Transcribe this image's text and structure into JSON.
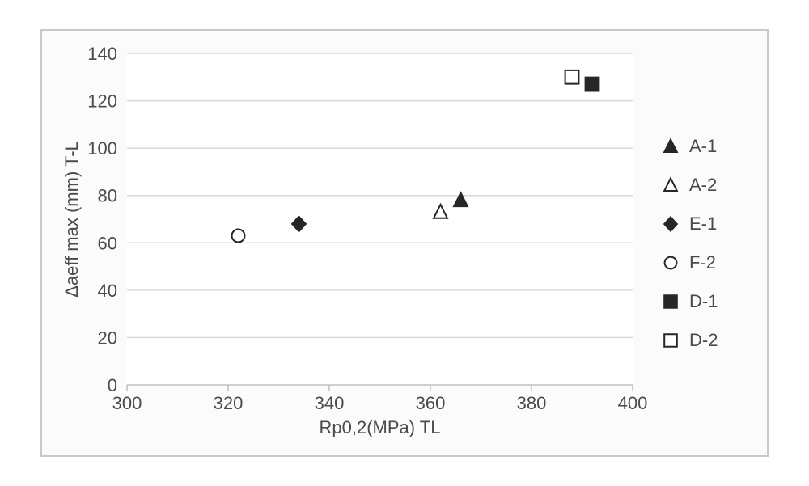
{
  "chart": {
    "type": "scatter",
    "background_color": "#fbfbfb",
    "plot_background": "#ffffff",
    "panel_border_color": "#c9c9c9",
    "grid_color": "#d9d9d9",
    "axis_line_color": "#bfbfbf",
    "tick_label_color": "#4a4a4a",
    "axis_title_color": "#4a4a4a",
    "tick_fontsize": 22,
    "axis_title_fontsize": 22,
    "xlabel": "Rp0,2(MPa) TL",
    "ylabel": "Δaeff max (mm) T-L",
    "xlim": [
      300,
      400
    ],
    "ylim": [
      0,
      140
    ],
    "xticks": [
      300,
      320,
      340,
      360,
      380,
      400
    ],
    "yticks": [
      0,
      20,
      40,
      60,
      80,
      100,
      120,
      140
    ],
    "marker_stroke": "#262626",
    "marker_fill_solid": "#262626",
    "marker_fill_open": "#ffffff",
    "marker_size": 12,
    "series": [
      {
        "name": "A-1",
        "marker": "triangle",
        "filled": true,
        "x": 366,
        "y": 78
      },
      {
        "name": "A-2",
        "marker": "triangle",
        "filled": false,
        "x": 362,
        "y": 73
      },
      {
        "name": "E-1",
        "marker": "diamond",
        "filled": true,
        "x": 334,
        "y": 68
      },
      {
        "name": "F-2",
        "marker": "circle",
        "filled": false,
        "x": 322,
        "y": 63
      },
      {
        "name": "D-1",
        "marker": "square",
        "filled": true,
        "x": 392,
        "y": 127
      },
      {
        "name": "D-2",
        "marker": "square",
        "filled": false,
        "x": 388,
        "y": 130
      }
    ]
  }
}
